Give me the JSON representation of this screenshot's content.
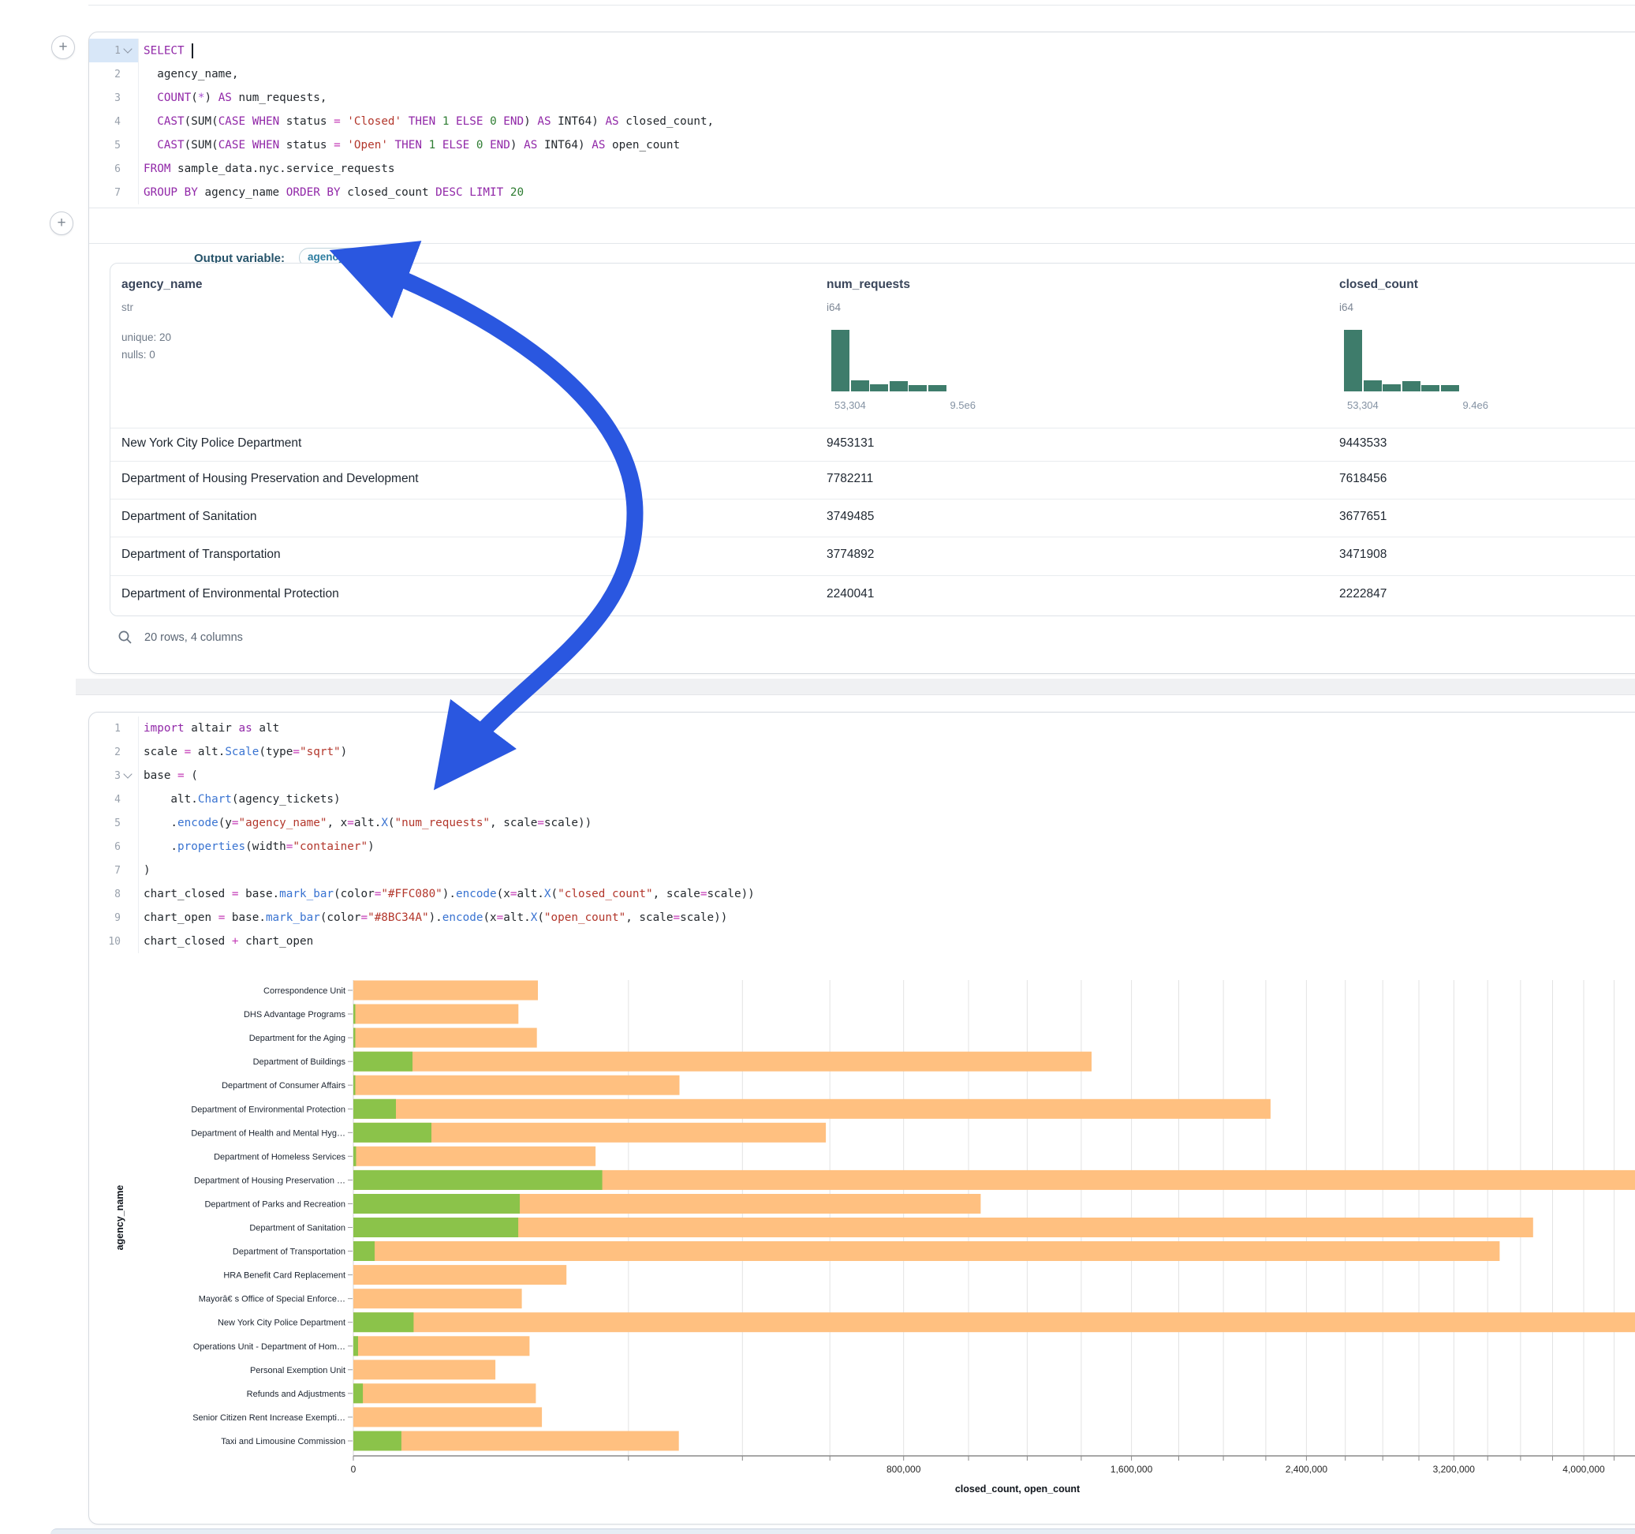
{
  "colors": {
    "arrow": "#2a57e0",
    "bar_closed": "#FFC080",
    "bar_open": "#8BC34A",
    "histogram": "#3E7C6B",
    "syntax_keyword": "#9128A8",
    "syntax_string": "#B3372C",
    "syntax_number": "#2E7D32",
    "syntax_operator": "#C33AB6",
    "syntax_function": "#3973D1",
    "chip_text": "#2E7EA1"
  },
  "sql_cell": {
    "lines": [
      {
        "n": "1",
        "fold": true,
        "active": true,
        "tokens": [
          [
            "SELECT",
            "kw"
          ],
          [
            " ",
            "pl"
          ],
          [
            "",
            "cur"
          ]
        ]
      },
      {
        "n": "2",
        "tokens": [
          [
            "  agency_name,",
            "pl"
          ]
        ]
      },
      {
        "n": "3",
        "tokens": [
          [
            "  ",
            "pl"
          ],
          [
            "COUNT",
            "kw"
          ],
          [
            "(",
            "pl"
          ],
          [
            "*",
            "star"
          ],
          [
            ") ",
            "pl"
          ],
          [
            "AS",
            "kw"
          ],
          [
            " num_requests,",
            "pl"
          ]
        ]
      },
      {
        "n": "4",
        "tokens": [
          [
            "  ",
            "pl"
          ],
          [
            "CAST",
            "kw"
          ],
          [
            "(SUM(",
            "pl"
          ],
          [
            "CASE",
            "kw"
          ],
          [
            " ",
            "pl"
          ],
          [
            "WHEN",
            "kw"
          ],
          [
            " status ",
            "pl"
          ],
          [
            "=",
            "op"
          ],
          [
            " ",
            "pl"
          ],
          [
            "'Closed'",
            "str"
          ],
          [
            " ",
            "pl"
          ],
          [
            "THEN",
            "kw"
          ],
          [
            " ",
            "pl"
          ],
          [
            "1",
            "num"
          ],
          [
            " ",
            "pl"
          ],
          [
            "ELSE",
            "kw"
          ],
          [
            " ",
            "pl"
          ],
          [
            "0",
            "num"
          ],
          [
            " ",
            "pl"
          ],
          [
            "END",
            "kw"
          ],
          [
            ") ",
            "pl"
          ],
          [
            "AS",
            "kw"
          ],
          [
            " INT64) ",
            "pl"
          ],
          [
            "AS",
            "kw"
          ],
          [
            " closed_count,",
            "pl"
          ]
        ]
      },
      {
        "n": "5",
        "tokens": [
          [
            "  ",
            "pl"
          ],
          [
            "CAST",
            "kw"
          ],
          [
            "(SUM(",
            "pl"
          ],
          [
            "CASE",
            "kw"
          ],
          [
            " ",
            "pl"
          ],
          [
            "WHEN",
            "kw"
          ],
          [
            " status ",
            "pl"
          ],
          [
            "=",
            "op"
          ],
          [
            " ",
            "pl"
          ],
          [
            "'Open'",
            "str"
          ],
          [
            " ",
            "pl"
          ],
          [
            "THEN",
            "kw"
          ],
          [
            " ",
            "pl"
          ],
          [
            "1",
            "num"
          ],
          [
            " ",
            "pl"
          ],
          [
            "ELSE",
            "kw"
          ],
          [
            " ",
            "pl"
          ],
          [
            "0",
            "num"
          ],
          [
            " ",
            "pl"
          ],
          [
            "END",
            "kw"
          ],
          [
            ") ",
            "pl"
          ],
          [
            "AS",
            "kw"
          ],
          [
            " INT64) ",
            "pl"
          ],
          [
            "AS",
            "kw"
          ],
          [
            " open_count",
            "pl"
          ]
        ]
      },
      {
        "n": "6",
        "tokens": [
          [
            "FROM",
            "kw"
          ],
          [
            " sample_data.nyc.service_requests",
            "pl"
          ]
        ]
      },
      {
        "n": "7",
        "tokens": [
          [
            "GROUP BY",
            "kw"
          ],
          [
            " agency_name ",
            "pl"
          ],
          [
            "ORDER BY",
            "kw"
          ],
          [
            " closed_count ",
            "pl"
          ],
          [
            "DESC",
            "kw"
          ],
          [
            " ",
            "pl"
          ],
          [
            "LIMIT",
            "kw"
          ],
          [
            " ",
            "pl"
          ],
          [
            "20",
            "num"
          ]
        ]
      }
    ]
  },
  "output_row": {
    "label": "Output variable:",
    "chip": "agency_tickets"
  },
  "table": {
    "columns": [
      {
        "name": "agency_name",
        "type": "str",
        "stats": [
          "unique: 20",
          "nulls: 0"
        ]
      },
      {
        "name": "num_requests",
        "type": "i64",
        "hist": [
          1.0,
          0.18,
          0.11,
          0.17,
          0.1,
          0.1
        ],
        "min_label": "53,304",
        "max_label": "9.5e6"
      },
      {
        "name": "closed_count",
        "type": "i64",
        "hist": [
          1.0,
          0.18,
          0.11,
          0.17,
          0.1,
          0.1
        ],
        "min_label": "53,304",
        "max_label": "9.4e6"
      }
    ],
    "rows": [
      [
        "New York City Police Department",
        "9453131",
        "9443533"
      ],
      [
        "Department of Housing Preservation and Development",
        "7782211",
        "7618456"
      ],
      [
        "Department of Sanitation",
        "3749485",
        "3677651"
      ],
      [
        "Department of Transportation",
        "3774892",
        "3471908"
      ],
      [
        "Department of Environmental Protection",
        "2240041",
        "2222847"
      ]
    ],
    "footer": "20 rows, 4 columns"
  },
  "python_cell": {
    "lines": [
      {
        "n": "1",
        "tokens": [
          [
            "import",
            "kw"
          ],
          [
            " altair ",
            "pl"
          ],
          [
            "as",
            "kw"
          ],
          [
            " alt",
            "pl"
          ]
        ]
      },
      {
        "n": "2",
        "tokens": [
          [
            "scale ",
            "pl"
          ],
          [
            "=",
            "op"
          ],
          [
            " alt.",
            "pl"
          ],
          [
            "Scale",
            "fn"
          ],
          [
            "(type",
            "pl"
          ],
          [
            "=",
            "op"
          ],
          [
            "\"sqrt\"",
            "str"
          ],
          [
            ")",
            "pl"
          ]
        ]
      },
      {
        "n": "3",
        "fold": true,
        "tokens": [
          [
            "base ",
            "pl"
          ],
          [
            "=",
            "op"
          ],
          [
            " (",
            "pl"
          ]
        ]
      },
      {
        "n": "4",
        "tokens": [
          [
            "    alt.",
            "pl"
          ],
          [
            "Chart",
            "fn"
          ],
          [
            "(agency_tickets)",
            "pl"
          ]
        ]
      },
      {
        "n": "5",
        "tokens": [
          [
            "    .",
            "pl"
          ],
          [
            "encode",
            "fn"
          ],
          [
            "(y",
            "pl"
          ],
          [
            "=",
            "op"
          ],
          [
            "\"agency_name\"",
            "str"
          ],
          [
            ", x",
            "pl"
          ],
          [
            "=",
            "op"
          ],
          [
            "alt.",
            "pl"
          ],
          [
            "X",
            "fn"
          ],
          [
            "(",
            "pl"
          ],
          [
            "\"num_requests\"",
            "str"
          ],
          [
            ", scale",
            "pl"
          ],
          [
            "=",
            "op"
          ],
          [
            "scale))",
            "pl"
          ]
        ]
      },
      {
        "n": "6",
        "tokens": [
          [
            "    .",
            "pl"
          ],
          [
            "properties",
            "fn"
          ],
          [
            "(width",
            "pl"
          ],
          [
            "=",
            "op"
          ],
          [
            "\"container\"",
            "str"
          ],
          [
            ")",
            "pl"
          ]
        ]
      },
      {
        "n": "7",
        "tokens": [
          [
            ")",
            "pl"
          ]
        ]
      },
      {
        "n": "8",
        "tokens": [
          [
            "chart_closed ",
            "pl"
          ],
          [
            "=",
            "op"
          ],
          [
            " base.",
            "pl"
          ],
          [
            "mark_bar",
            "fn"
          ],
          [
            "(color",
            "pl"
          ],
          [
            "=",
            "op"
          ],
          [
            "\"#FFC080\"",
            "str"
          ],
          [
            ").",
            "pl"
          ],
          [
            "encode",
            "fn"
          ],
          [
            "(x",
            "pl"
          ],
          [
            "=",
            "op"
          ],
          [
            "alt.",
            "pl"
          ],
          [
            "X",
            "fn"
          ],
          [
            "(",
            "pl"
          ],
          [
            "\"closed_count\"",
            "str"
          ],
          [
            ", scale",
            "pl"
          ],
          [
            "=",
            "op"
          ],
          [
            "scale))",
            "pl"
          ]
        ]
      },
      {
        "n": "9",
        "tokens": [
          [
            "chart_open ",
            "pl"
          ],
          [
            "=",
            "op"
          ],
          [
            " base.",
            "pl"
          ],
          [
            "mark_bar",
            "fn"
          ],
          [
            "(color",
            "pl"
          ],
          [
            "=",
            "op"
          ],
          [
            "\"#8BC34A\"",
            "str"
          ],
          [
            ").",
            "pl"
          ],
          [
            "encode",
            "fn"
          ],
          [
            "(x",
            "pl"
          ],
          [
            "=",
            "op"
          ],
          [
            "alt.",
            "pl"
          ],
          [
            "X",
            "fn"
          ],
          [
            "(",
            "pl"
          ],
          [
            "\"open_count\"",
            "str"
          ],
          [
            ", scale",
            "pl"
          ],
          [
            "=",
            "op"
          ],
          [
            "scale))",
            "pl"
          ]
        ]
      },
      {
        "n": "10",
        "tokens": [
          [
            "chart_closed ",
            "pl"
          ],
          [
            "+",
            "op"
          ],
          [
            " chart_open",
            "pl"
          ]
        ]
      }
    ]
  },
  "chart_data": {
    "type": "bar",
    "orientation": "horizontal",
    "layered": true,
    "x_scale": "sqrt",
    "xlabel": "closed_count, open_count",
    "ylabel": "agency_name",
    "x_tick_label_values": [
      0,
      800000,
      1600000,
      2400000,
      3200000,
      4000000
    ],
    "x_tick_labels": [
      "0",
      "800,000",
      "1,600,000",
      "2,400,000",
      "3,200,000",
      "4,000,000"
    ],
    "x_grid_step": 200000,
    "x_max": 4400000,
    "grid": true,
    "legend": "none",
    "categories": [
      "Correspondence Unit",
      "DHS Advantage Programs",
      "Department for the Aging",
      "Department of Buildings",
      "Department of Consumer Affairs",
      "Department of Environmental Protection",
      "Department of Health and Mental Hyg…",
      "Department of Homeless Services",
      "Department of Housing Preservation …",
      "Department of Parks and Recreation",
      "Department of Sanitation",
      "Department of Transportation",
      "HRA Benefit Card Replacement",
      "Mayorâ€ s Office of Special Enforce…",
      "New York City Police Department",
      "Operations Unit - Department of Hom…",
      "Personal Exemption Unit",
      "Refunds and Adjustments",
      "Senior Citizen Rent Increase Exempti…",
      "Taxi and Limousine Commission"
    ],
    "series": [
      {
        "name": "closed_count",
        "color": "#FFC080",
        "values": [
          90000,
          72000,
          89000,
          1440000,
          281000,
          2222847,
          590000,
          155000,
          7618456,
          1040000,
          3677651,
          3471908,
          120000,
          75000,
          9443533,
          82000,
          53304,
          88000,
          94000,
          280000
        ]
      },
      {
        "name": "open_count",
        "color": "#8BC34A",
        "values": [
          0,
          10,
          10,
          9250,
          10,
          4800,
          16100,
          20,
          163755,
          73200,
          71834,
          1200,
          0,
          0,
          9598,
          60,
          0,
          240,
          0,
          6100
        ]
      }
    ]
  }
}
